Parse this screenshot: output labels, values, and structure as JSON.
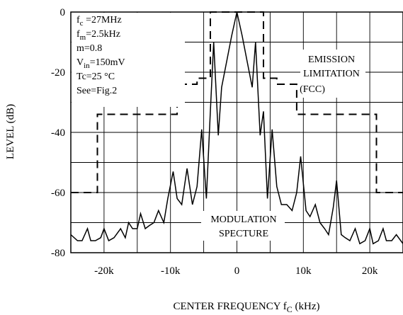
{
  "chart_data": {
    "type": "line",
    "title": "",
    "xlabel": "CENTER FREQUENCY f",
    "xlabel_sub": "C",
    "xlabel_unit": " (kHz)",
    "ylabel": "LEVEL  (dB)",
    "xlim": [
      -25,
      25
    ],
    "ylim": [
      -80,
      0
    ],
    "grid": true,
    "x_ticks": [
      {
        "value": -20,
        "label": "-20k"
      },
      {
        "value": -10,
        "label": "-10k"
      },
      {
        "value": 0,
        "label": "0"
      },
      {
        "value": 10,
        "label": "10k"
      },
      {
        "value": 20,
        "label": "20k"
      }
    ],
    "y_ticks": [
      {
        "value": 0,
        "label": "0"
      },
      {
        "value": -20,
        "label": "-20"
      },
      {
        "value": -40,
        "label": "-40"
      },
      {
        "value": -60,
        "label": "-60"
      },
      {
        "value": -80,
        "label": "-80"
      }
    ],
    "series": [
      {
        "style": "solid",
        "x": [
          -25,
          -24,
          -23.3,
          -22.5,
          -22,
          -21.3,
          -20.5,
          -20,
          -19.3,
          -18.5,
          -17.5,
          -16.8,
          -16.3,
          -15.7,
          -15,
          -14.5,
          -13.8,
          -13.2,
          -12.5,
          -11.8,
          -11,
          -10.4,
          -9.6,
          -9,
          -8.3,
          -7.5,
          -6.7,
          -6,
          -5.3,
          -4.6,
          -4,
          -3.5,
          -2.8,
          -2.3,
          -1.5,
          -0.8,
          0,
          0.8,
          1.5,
          2.3,
          2.8,
          3.5,
          4,
          4.6,
          5.3,
          6,
          6.7,
          7.5,
          8.3,
          9,
          9.6,
          10.4,
          11,
          11.8,
          12.5,
          13.2,
          13.8,
          14.5,
          15,
          15.7,
          16.3,
          17,
          17.8,
          18.5,
          19.3,
          20,
          20.5,
          21.3,
          22,
          22.5,
          23.3,
          24,
          25
        ],
        "y": [
          -74,
          -76,
          -76,
          -72,
          -76,
          -76,
          -75,
          -72,
          -76,
          -75,
          -72,
          -75,
          -70,
          -72,
          -72,
          -67,
          -72,
          -71,
          -70,
          -66,
          -70,
          -62,
          -53,
          -62,
          -64,
          -52,
          -64,
          -58,
          -39,
          -62,
          -33,
          -10,
          -41,
          -25,
          -16,
          -8,
          0,
          -8,
          -16,
          -25,
          -10,
          -41,
          -33,
          -62,
          -39,
          -58,
          -64,
          -64,
          -66,
          -60,
          -48,
          -66,
          -68,
          -64,
          -70,
          -72,
          -74,
          -65,
          -56,
          -74,
          -75,
          -76,
          -72,
          -77,
          -76,
          -72,
          -77,
          -76,
          -72,
          -76,
          -76,
          -74,
          -77
        ]
      },
      {
        "style": "dashed",
        "x": [
          -25,
          -21,
          -21,
          -9,
          -9,
          -6,
          -6,
          -4,
          -4,
          4,
          4,
          6,
          6,
          9,
          9,
          21,
          21,
          25
        ],
        "y": [
          -60,
          -60,
          -34,
          -34,
          -24,
          -24,
          -22,
          -22,
          0,
          0,
          -22,
          -22,
          -24,
          -24,
          -34,
          -34,
          -60,
          -60
        ]
      }
    ],
    "annotations": {
      "params": [
        {
          "main": "f",
          "sub": "c",
          "rest": " =27MHz"
        },
        {
          "main": "f",
          "sub": "m",
          "rest": "=2.5kHz"
        },
        {
          "main": "m=0.8",
          "sub": "",
          "rest": ""
        },
        {
          "main": "V",
          "sub": "in",
          "rest": "=150mV"
        },
        {
          "main": "Tc=25 °C",
          "sub": "",
          "rest": ""
        },
        {
          "main": "See=Fig.2",
          "sub": "",
          "rest": ""
        }
      ],
      "emission": [
        "EMISSION",
        "LIMITATION",
        "(FCC)"
      ],
      "modulation": [
        "MODULATION",
        "SPECTURE"
      ]
    }
  }
}
